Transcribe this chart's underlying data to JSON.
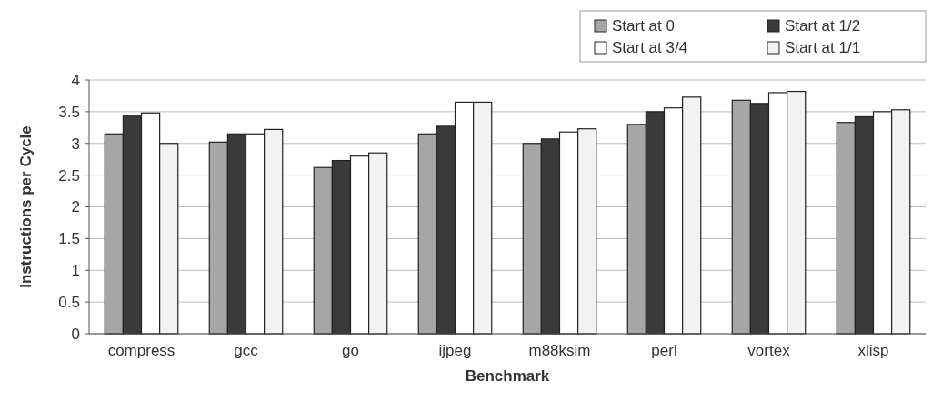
{
  "chart_data": {
    "type": "bar",
    "xlabel": "Benchmark",
    "ylabel": "Instructions per Cycle",
    "categories": [
      "compress",
      "gcc",
      "go",
      "ijpeg",
      "m88ksim",
      "perl",
      "vortex",
      "xlisp"
    ],
    "series": [
      {
        "name": "Start at 0",
        "color": "#a6a6a6",
        "values": [
          3.15,
          3.02,
          2.62,
          3.15,
          3.0,
          3.3,
          3.68,
          3.33
        ]
      },
      {
        "name": "Start at 1/2",
        "color": "#3a3a3a",
        "values": [
          3.43,
          3.15,
          2.73,
          3.27,
          3.07,
          3.5,
          3.63,
          3.42
        ]
      },
      {
        "name": "Start at 3/4",
        "color": "#ffffff",
        "values": [
          3.48,
          3.15,
          2.8,
          3.65,
          3.18,
          3.56,
          3.8,
          3.5
        ]
      },
      {
        "name": "Start at 1/1",
        "color": "#f2f2f2",
        "values": [
          3.0,
          3.22,
          2.85,
          3.65,
          3.23,
          3.73,
          3.82,
          3.53
        ]
      }
    ],
    "ylim": [
      0,
      4
    ],
    "yticks": [
      0,
      0.5,
      1,
      1.5,
      2,
      2.5,
      3,
      3.5,
      4
    ],
    "grid": "y",
    "legend": "top right"
  }
}
